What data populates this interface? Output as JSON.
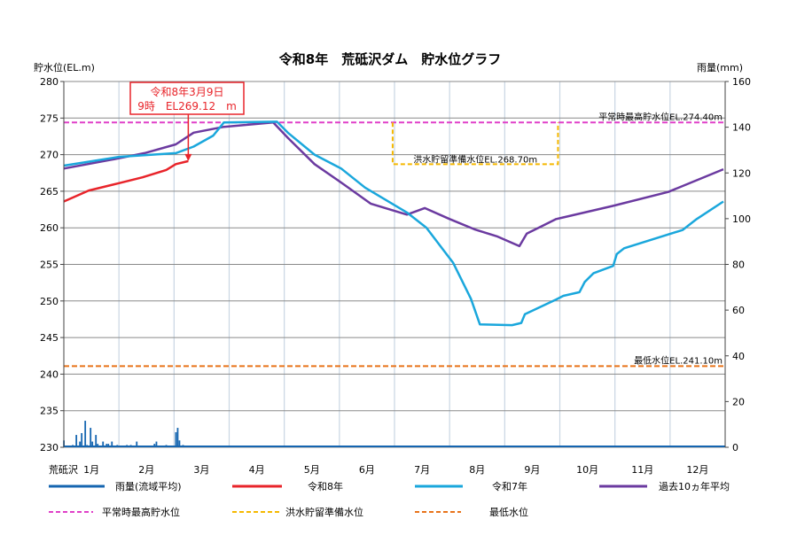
{
  "chart_data": {
    "type": "line",
    "title": "令和8年　荒砥沢ダム　貯水位グラフ",
    "ylabel": "貯水位(EL.m)",
    "y2label": "雨量(mm)",
    "xlabel": "荒砥沢",
    "ylim": [
      230,
      280
    ],
    "yticks": [
      230,
      235,
      240,
      245,
      250,
      255,
      260,
      265,
      270,
      275,
      280
    ],
    "y2lim": [
      0,
      160
    ],
    "y2ticks": [
      0,
      20,
      40,
      60,
      80,
      100,
      120,
      140,
      160
    ],
    "xticks": [
      "1月",
      "2月",
      "3月",
      "4月",
      "5月",
      "6月",
      "7月",
      "8月",
      "9月",
      "10月",
      "11月",
      "12月"
    ],
    "grid": true,
    "legend_placement": "bottom",
    "series": [
      {
        "name": "令和8年",
        "color": "#e8242a",
        "points": [
          [
            "01-01",
            263.6
          ],
          [
            "01-15",
            265.1
          ],
          [
            "02-01",
            266.1
          ],
          [
            "02-13",
            266.9
          ],
          [
            "02-25",
            267.9
          ],
          [
            "03-02",
            268.7
          ],
          [
            "03-09",
            269.12
          ]
        ]
      },
      {
        "name": "令和7年",
        "color": "#1aa7dc",
        "points": [
          [
            "01-01",
            268.5
          ],
          [
            "02-01",
            269.7
          ],
          [
            "03-02",
            270.2
          ],
          [
            "03-12",
            271.1
          ],
          [
            "03-23",
            272.6
          ],
          [
            "03-29",
            274.4
          ],
          [
            "04-27",
            274.5
          ],
          [
            "05-03",
            273.0
          ],
          [
            "05-18",
            270.0
          ],
          [
            "06-02",
            268.1
          ],
          [
            "06-15",
            265.5
          ],
          [
            "07-08",
            262.1
          ],
          [
            "07-19",
            260.0
          ],
          [
            "08-03",
            255.2
          ],
          [
            "08-13",
            250.3
          ],
          [
            "08-18",
            246.8
          ],
          [
            "09-05",
            246.7
          ],
          [
            "09-10",
            247.0
          ],
          [
            "09-12",
            248.2
          ],
          [
            "09-29",
            250.2
          ],
          [
            "10-03",
            250.7
          ],
          [
            "10-12",
            251.2
          ],
          [
            "10-15",
            252.6
          ],
          [
            "10-20",
            253.8
          ],
          [
            "10-31",
            254.8
          ],
          [
            "11-02",
            256.4
          ],
          [
            "11-06",
            257.2
          ],
          [
            "12-08",
            259.7
          ],
          [
            "12-16",
            261.2
          ],
          [
            "12-31",
            263.6
          ]
        ]
      },
      {
        "name": "過去10ヵ年平均",
        "color": "#6b3aa0",
        "points": [
          [
            "01-01",
            268.1
          ],
          [
            "02-01",
            269.5
          ],
          [
            "02-14",
            270.2
          ],
          [
            "03-02",
            271.4
          ],
          [
            "03-12",
            273.0
          ],
          [
            "03-29",
            273.8
          ],
          [
            "04-25",
            274.4
          ],
          [
            "05-03",
            272.3
          ],
          [
            "05-18",
            268.7
          ],
          [
            "06-03",
            266.0
          ],
          [
            "06-18",
            263.3
          ],
          [
            "07-08",
            261.8
          ],
          [
            "07-18",
            262.7
          ],
          [
            "08-01",
            261.2
          ],
          [
            "08-15",
            259.8
          ],
          [
            "08-28",
            258.8
          ],
          [
            "09-09",
            257.5
          ],
          [
            "09-13",
            259.2
          ],
          [
            "09-29",
            261.2
          ],
          [
            "10-31",
            263.0
          ],
          [
            "11-30",
            264.9
          ],
          [
            "12-31",
            268.0
          ]
        ]
      }
    ],
    "rainfall": {
      "name": "雨量(流域平均)",
      "color": "#1565b0",
      "points": [
        [
          "01-01",
          3
        ],
        [
          "01-06",
          1
        ],
        [
          "01-08",
          5.4
        ],
        [
          "01-10",
          2.5
        ],
        [
          "01-11",
          6.2
        ],
        [
          "01-13",
          11.6
        ],
        [
          "01-14",
          1
        ],
        [
          "01-16",
          8.5
        ],
        [
          "01-17",
          2.5
        ],
        [
          "01-19",
          5.4
        ],
        [
          "01-20",
          1.5
        ],
        [
          "01-23",
          2.5
        ],
        [
          "01-25",
          1.5
        ],
        [
          "01-26",
          1.5
        ],
        [
          "01-28",
          2.5
        ],
        [
          "01-31",
          1
        ],
        [
          "02-05",
          1
        ],
        [
          "02-07",
          1
        ],
        [
          "02-10",
          2.5
        ],
        [
          "02-19",
          1.5
        ],
        [
          "02-20",
          2.5
        ],
        [
          "02-25",
          1
        ],
        [
          "03-02",
          6.6
        ],
        [
          "03-03",
          8.5
        ],
        [
          "03-04",
          3
        ],
        [
          "03-06",
          1
        ]
      ]
    },
    "reference_lines": [
      {
        "name": "平常時最高貯水位",
        "label": "平常時最高貯水位EL.274.40m",
        "value": 274.4,
        "color": "#e040c8"
      },
      {
        "name": "洪水貯留準備水位",
        "label": "洪水貯留準備水位EL.268.70m",
        "value": 268.7,
        "from": "06-30",
        "to": "09-30",
        "color": "#f5b800"
      },
      {
        "name": "最低水位",
        "label": "最低水位EL.241.10m",
        "value": 241.1,
        "color": "#e8731a"
      }
    ],
    "annotation": {
      "line1": "令和8年3月9日",
      "line2": "9時　EL269.12　m",
      "date": "03-09",
      "value": 269.12,
      "color": "#e8242a"
    }
  }
}
